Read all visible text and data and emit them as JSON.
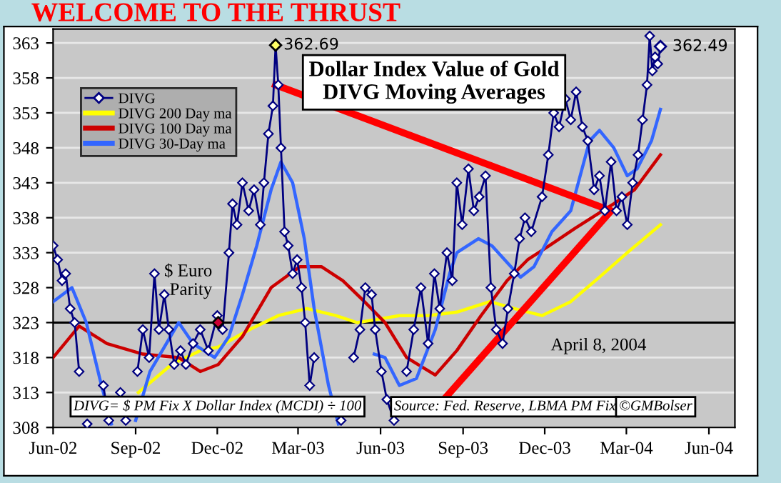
{
  "chart_data": {
    "type": "line",
    "title": "WELCOME TO THE THRUST",
    "subtitle": "Dollar Index Value of Gold\nDIVG Moving Averages",
    "xlim": [
      "2002-06-01",
      "2004-06-30"
    ],
    "xticks": [
      {
        "value": "2002-06-01",
        "label": "Jun-02"
      },
      {
        "value": "2002-09-01",
        "label": "Sep-02"
      },
      {
        "value": "2002-12-01",
        "label": "Dec-02"
      },
      {
        "value": "2003-03-01",
        "label": "Mar-03"
      },
      {
        "value": "2003-06-01",
        "label": "Jun-03"
      },
      {
        "value": "2003-09-01",
        "label": "Sep-03"
      },
      {
        "value": "2003-12-01",
        "label": "Dec-03"
      },
      {
        "value": "2004-03-01",
        "label": "Mar-04"
      },
      {
        "value": "2004-06-01",
        "label": "Jun-04"
      }
    ],
    "ylim": [
      308,
      365
    ],
    "yticks": [
      308,
      313,
      318,
      323,
      328,
      333,
      338,
      343,
      348,
      353,
      358,
      363
    ],
    "grid": "y",
    "legend": "top left",
    "series": [
      {
        "name": "DIVG",
        "color": "#000080",
        "marker": "diamond",
        "x": [
          "2002-06-01",
          "2002-06-06",
          "2002-06-11",
          "2002-06-15",
          "2002-06-20",
          "2002-06-25",
          "2002-06-30",
          "2002-07-04",
          "2002-07-09",
          "2002-07-17",
          "2002-07-27",
          "2002-08-02",
          "2002-08-07",
          "2002-08-15",
          "2002-08-21",
          "2002-08-27",
          "2002-09-03",
          "2002-09-09",
          "2002-09-16",
          "2002-09-22",
          "2002-09-27",
          "2002-10-03",
          "2002-10-08",
          "2002-10-14",
          "2002-10-21",
          "2002-10-27",
          "2002-11-04",
          "2002-11-12",
          "2002-11-21",
          "2002-12-01",
          "2002-12-07",
          "2002-12-14",
          "2002-12-18",
          "2002-12-23",
          "2002-12-29",
          "2003-01-05",
          "2003-01-11",
          "2003-01-18",
          "2003-01-22",
          "2003-01-27",
          "2003-02-01",
          "2003-02-04",
          "2003-02-07",
          "2003-02-10",
          "2003-02-14",
          "2003-02-18",
          "2003-02-23",
          "2003-02-28",
          "2003-03-05",
          "2003-03-09",
          "2003-03-14",
          "2003-03-19",
          "2003-03-25",
          "2003-04-01",
          "2003-04-13",
          "2003-04-18",
          "2003-04-26",
          "2003-05-02",
          "2003-05-09",
          "2003-05-15",
          "2003-05-22",
          "2003-05-26",
          "2003-06-02",
          "2003-06-08",
          "2003-06-16",
          "2003-06-22",
          "2003-06-30",
          "2003-07-08",
          "2003-07-16",
          "2003-07-24",
          "2003-07-31",
          "2003-08-06",
          "2003-08-14",
          "2003-08-20",
          "2003-08-25",
          "2003-08-31",
          "2003-09-07",
          "2003-09-13",
          "2003-09-19",
          "2003-09-26",
          "2003-10-02",
          "2003-10-08",
          "2003-10-15",
          "2003-10-21",
          "2003-10-28",
          "2003-11-03",
          "2003-11-09",
          "2003-11-16",
          "2003-11-28",
          "2003-12-05",
          "2003-12-11",
          "2003-12-17",
          "2003-12-24",
          "2003-12-30",
          "2004-01-05",
          "2004-01-12",
          "2004-01-18",
          "2004-01-25",
          "2004-01-31",
          "2004-02-06",
          "2004-02-13",
          "2004-02-19",
          "2004-02-25",
          "2004-03-02",
          "2004-03-08",
          "2004-03-14",
          "2004-03-19",
          "2004-03-24",
          "2004-03-27",
          "2004-03-30",
          "2004-04-02",
          "2004-04-05",
          "2004-04-08"
        ],
        "values": [
          334,
          332,
          329,
          330,
          325,
          323,
          316,
          null,
          308.5,
          null,
          314,
          309,
          null,
          313,
          309,
          null,
          316,
          322,
          318,
          330,
          322,
          327,
          322,
          317,
          319,
          317,
          320,
          322,
          319,
          324,
          322,
          333,
          340,
          337,
          343,
          339,
          342,
          337,
          343,
          350,
          354,
          362.69,
          357,
          348,
          336,
          334,
          330,
          332,
          328,
          323,
          314,
          318,
          null,
          null,
          null,
          309,
          null,
          318,
          322,
          328,
          327,
          322,
          316,
          312,
          309,
          null,
          316,
          322,
          328,
          320,
          330,
          325,
          333,
          329,
          343,
          337,
          345,
          339,
          341,
          344,
          328,
          322,
          320,
          325,
          330,
          335,
          338,
          336,
          341,
          347,
          353,
          351,
          355,
          352,
          356,
          351,
          349,
          342,
          344,
          339,
          346,
          339,
          341,
          337,
          343,
          347,
          352,
          357,
          364,
          359,
          361,
          360,
          362.49
        ]
      },
      {
        "name": "DIVG 200 Day ma",
        "color": "#ffff00",
        "x": [
          "2002-09-04",
          "2002-10-11",
          "2002-11-12",
          "2002-12-02",
          "2003-01-06",
          "2003-02-07",
          "2003-03-11",
          "2003-04-12",
          "2003-05-06",
          "2003-05-30",
          "2003-06-22",
          "2003-07-24",
          "2003-08-25",
          "2003-10-01",
          "2003-10-28",
          "2003-11-28",
          "2003-12-30",
          "2004-01-31",
          "2004-03-02",
          "2004-04-08"
        ],
        "values": [
          313,
          317,
          319,
          319.5,
          322,
          324,
          325,
          324,
          323,
          323.5,
          324,
          324,
          324.5,
          326,
          325,
          324,
          326,
          329.5,
          333,
          337
        ]
      },
      {
        "name": "DIVG 100 Day ma",
        "color": "#cc0000",
        "x": [
          "2002-06-01",
          "2002-06-30",
          "2002-07-31",
          "2002-09-09",
          "2002-10-19",
          "2002-11-12",
          "2002-12-02",
          "2002-12-29",
          "2003-01-30",
          "2003-03-03",
          "2003-03-27",
          "2003-04-20",
          "2003-05-14",
          "2003-06-06",
          "2003-06-30",
          "2003-08-01",
          "2003-08-25",
          "2003-09-21",
          "2003-10-20",
          "2003-11-12",
          "2003-12-06",
          "2004-01-04",
          "2004-02-16",
          "2004-03-10",
          "2004-04-08"
        ],
        "values": [
          318,
          322.5,
          320,
          318.5,
          318,
          316,
          317,
          321,
          328,
          331,
          331,
          329,
          326,
          323,
          318,
          315.5,
          319,
          324,
          329,
          332,
          334,
          336.5,
          340,
          342,
          347
        ]
      },
      {
        "name": "DIVG 30-Day ma",
        "color": "#3366ff",
        "x": [
          "2002-06-01",
          "2002-06-22",
          "2002-07-08",
          "2002-07-23",
          "2002-08-05",
          "2002-08-16",
          "2002-09-01",
          "2002-09-17",
          "2002-10-19",
          "2002-11-04",
          "2002-11-28",
          "2002-12-14",
          "2002-12-29",
          "2003-01-14",
          "2003-01-30",
          "2003-02-10",
          "2003-02-23",
          "2003-03-08",
          "2003-03-19",
          "2003-04-04",
          "2003-04-15",
          "2003-05-06",
          "2003-05-25",
          "2003-06-06",
          "2003-06-22",
          "2003-07-11",
          "2003-08-01",
          "2003-08-17",
          "2003-08-25",
          "2003-09-18",
          "2003-10-03",
          "2003-11-04",
          "2003-11-19",
          "2003-12-09",
          "2003-12-30",
          "2004-01-20",
          "2004-01-31",
          "2004-02-16",
          "2004-03-02",
          "2004-03-13",
          "2004-03-29",
          "2004-04-08"
        ],
        "values": [
          326,
          328,
          323,
          315,
          308.5,
          null,
          309,
          316,
          323,
          320,
          318,
          321,
          327,
          334,
          342,
          346,
          343,
          335,
          325,
          314,
          308.5,
          null,
          318.5,
          318,
          314,
          315,
          322,
          330,
          333,
          335,
          334,
          329.5,
          331,
          336,
          339,
          349,
          350.5,
          348,
          344,
          345,
          349,
          353.5
        ]
      },
      {
        "color": "#ff0000",
        "x": [
          "2003-02-04",
          "2004-02-13",
          "2003-08-14"
        ],
        "values": [
          357,
          339,
          312.5
        ]
      }
    ],
    "ref_lines": [
      {
        "axis": "y",
        "value": 323,
        "label": "April 8, 2004",
        "color": "#000000"
      }
    ],
    "annotations": [
      {
        "text": "362.69",
        "x": "2003-02-04",
        "y": 362.69
      },
      {
        "text": "362.49",
        "x": "2004-04-08",
        "y": 362.49
      },
      {
        "text": "$ Euro\nParity",
        "x": "2002-12-02",
        "y": 323
      },
      "DIVG= $ PM Fix X Dollar Index (MCDI) ÷ 100",
      "Source: Fed. Reserve, LBMA PM Fix",
      "©GMBolser"
    ]
  }
}
